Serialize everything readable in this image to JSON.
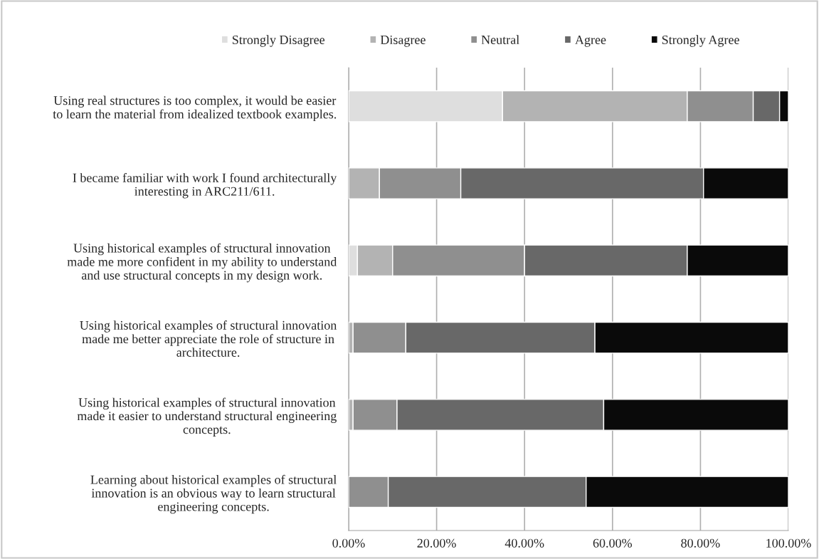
{
  "chart_data": {
    "type": "bar",
    "orientation": "horizontal",
    "stacked": true,
    "categories": [
      "Using real structures is too complex, it would be easier\nto learn the material from idealized textbook examples.",
      "I became familiar with work I found architecturally\ninteresting in ARC211/611.",
      "Using historical examples of structural innovation\nmade me more confident in my ability to understand\nand use structural concepts in my design work.",
      "Using historical examples of structural innovation\nmade me better appreciate the role of structure in\narchitecture.",
      "Using historical examples of structural innovation\nmade it easier to understand structural engineering\nconcepts.",
      "Learning about historical examples of structural\ninnovation is an obvious way to learn structural\nengineering concepts."
    ],
    "series": [
      {
        "name": "Strongly Disagree",
        "color": "#dedede",
        "values": [
          35,
          0,
          2,
          0,
          0,
          0
        ]
      },
      {
        "name": "Disagree",
        "color": "#b3b3b3",
        "values": [
          42,
          7,
          8,
          1,
          1,
          0
        ]
      },
      {
        "name": "Neutral",
        "color": "#8f8f8f",
        "values": [
          15,
          18.5,
          30,
          12,
          10,
          9
        ]
      },
      {
        "name": "Agree",
        "color": "#686868",
        "values": [
          6,
          55.2,
          37,
          43,
          47,
          45
        ]
      },
      {
        "name": "Strongly Agree",
        "color": "#0a0a0a",
        "values": [
          2,
          19.3,
          23,
          44,
          42,
          46
        ]
      }
    ],
    "xlim": [
      0,
      100
    ],
    "xticks": [
      {
        "value": 0,
        "label": "0.00%"
      },
      {
        "value": 20,
        "label": "20.00%"
      },
      {
        "value": 40,
        "label": "40.00%"
      },
      {
        "value": 60,
        "label": "60.00%"
      },
      {
        "value": 80,
        "label": "80.00%"
      },
      {
        "value": 100,
        "label": "100.00%"
      }
    ],
    "grid": "x",
    "legend": "top"
  }
}
